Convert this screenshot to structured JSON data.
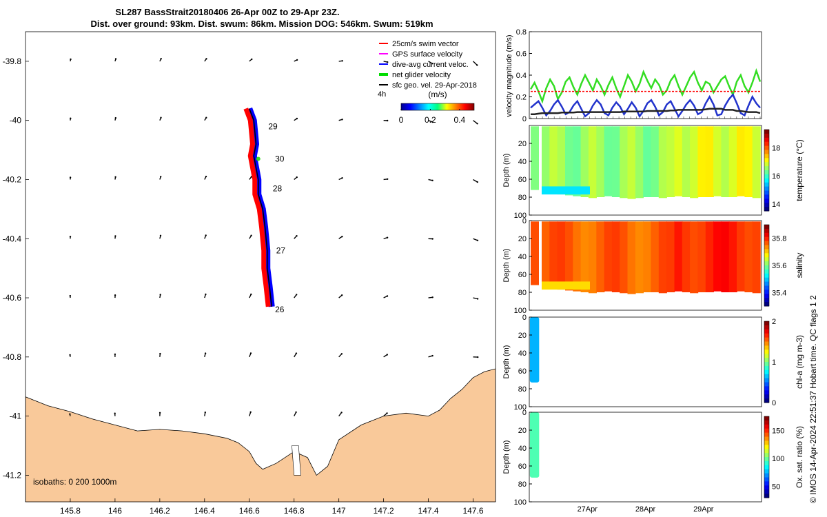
{
  "title_line1": "SL287 BassStrait20180406 26-Apr 00Z to 29-Apr 23Z.",
  "title_line2": "Dist. over ground: 93km. Dist. swum: 86km. Mission DOG: 546km. Swum: 519km",
  "map": {
    "x_ticks": [
      "145.8",
      "146",
      "146.2",
      "146.4",
      "146.6",
      "146.8",
      "147",
      "147.2",
      "147.4",
      "147.6"
    ],
    "y_ticks": [
      "-39.8",
      "-40",
      "-40.2",
      "-40.4",
      "-40.6",
      "-40.8",
      "-41",
      "-41.2"
    ],
    "x_range": [
      145.6,
      147.7
    ],
    "y_range": [
      -41.29,
      -39.7
    ],
    "legend": [
      {
        "label": "25cm/s swim vector",
        "color": "#ff0000"
      },
      {
        "label": "GPS surface velocity",
        "color": "#ff00ff"
      },
      {
        "label": "dive-avg current veloc.",
        "color": "#0000ff"
      },
      {
        "label": "net glider velocity",
        "color": "#00dd00"
      },
      {
        "label": "sfc geo. vel. 29-Apr-2018",
        "color": "#000000"
      }
    ],
    "colorbar_unit": "(m/s)",
    "colorbar_ticks": [
      "0",
      "0.2",
      "0.4"
    ],
    "colorbar_range": [
      0,
      0.5
    ],
    "time_label": "4h",
    "day_labels": [
      {
        "text": "29",
        "lon": 146.685,
        "lat": -40.02
      },
      {
        "text": "30",
        "lon": 146.715,
        "lat": -40.13
      },
      {
        "text": "28",
        "lon": 146.705,
        "lat": -40.23
      },
      {
        "text": "27",
        "lon": 146.72,
        "lat": -40.44
      },
      {
        "text": "26",
        "lon": 146.715,
        "lat": -40.64
      }
    ],
    "isobaths_label": "isobaths: 0   200  1000m",
    "land_color": "#f9c99a"
  },
  "chart_data": [
    {
      "type": "line",
      "name": "velocity",
      "ylabel": "velocity magnitude (m/s)",
      "ylim": [
        0,
        0.8
      ],
      "y_ticks": [
        "0",
        "0.2",
        "0.4",
        "0.6",
        "0.8"
      ],
      "x_range_days": [
        0,
        4
      ],
      "series": [
        {
          "color": "#33dd22",
          "values": [
            0.27,
            0.33,
            0.25,
            0.16,
            0.28,
            0.36,
            0.3,
            0.18,
            0.24,
            0.34,
            0.38,
            0.29,
            0.22,
            0.32,
            0.4,
            0.33,
            0.26,
            0.36,
            0.3,
            0.22,
            0.31,
            0.38,
            0.28,
            0.2,
            0.3,
            0.4,
            0.34,
            0.25,
            0.32,
            0.43,
            0.35,
            0.28,
            0.36,
            0.31,
            0.22,
            0.26,
            0.35,
            0.4,
            0.3,
            0.22,
            0.3,
            0.38,
            0.43,
            0.33,
            0.26,
            0.34,
            0.32,
            0.24,
            0.3,
            0.36,
            0.39,
            0.3,
            0.22,
            0.34,
            0.4,
            0.3,
            0.24,
            0.33,
            0.44,
            0.34
          ]
        },
        {
          "color": "#2233cc",
          "values": [
            0.1,
            0.13,
            0.16,
            0.1,
            0.03,
            0.07,
            0.13,
            0.17,
            0.11,
            0.04,
            0.06,
            0.12,
            0.16,
            0.09,
            0.02,
            0.05,
            0.12,
            0.17,
            0.13,
            0.05,
            0.03,
            0.1,
            0.15,
            0.11,
            0.04,
            0.09,
            0.15,
            0.1,
            0.02,
            0.07,
            0.14,
            0.17,
            0.11,
            0.03,
            0.06,
            0.13,
            0.16,
            0.09,
            0.02,
            0.07,
            0.13,
            0.17,
            0.12,
            0.04,
            0.06,
            0.14,
            0.2,
            0.13,
            0.03,
            0.04,
            0.12,
            0.18,
            0.22,
            0.14,
            0.05,
            0.03,
            0.12,
            0.2,
            0.14,
            0.1
          ]
        },
        {
          "color": "#222222",
          "values": [
            0.04,
            0.04,
            0.045,
            0.05,
            0.05,
            0.05,
            0.05,
            0.05,
            0.055,
            0.055,
            0.055,
            0.055,
            0.06,
            0.06,
            0.06,
            0.06,
            0.06,
            0.06,
            0.06,
            0.06,
            0.06,
            0.06,
            0.06,
            0.06,
            0.065,
            0.065,
            0.065,
            0.065,
            0.065,
            0.065,
            0.07,
            0.07,
            0.07,
            0.07,
            0.07,
            0.07,
            0.075,
            0.075,
            0.08,
            0.08,
            0.08,
            0.08,
            0.08,
            0.08,
            0.08,
            0.085,
            0.09,
            0.09,
            0.09,
            0.09,
            0.08,
            0.08,
            0.08,
            0.07,
            0.07,
            0.065,
            0.06,
            0.06,
            0.06,
            0.05
          ]
        },
        {
          "color": "#ff0000",
          "dashed": true,
          "values": [
            0.25,
            0.25
          ]
        }
      ]
    },
    {
      "type": "heatmap",
      "name": "temperature",
      "ylabel": "Depth (m)",
      "clabel": "temperature (°C)",
      "crange": [
        13.5,
        19.3
      ],
      "c_ticks": [
        "14",
        "16",
        "18"
      ],
      "y_ticks": [
        "20",
        "40",
        "60",
        "80",
        "100"
      ],
      "bottom_depth": [
        75,
        76,
        77,
        78,
        79,
        80,
        81,
        80,
        79,
        80,
        81,
        82,
        81,
        80,
        80,
        81,
        80,
        79,
        80,
        81,
        80,
        80,
        79,
        80,
        80,
        79,
        80,
        81
      ]
    },
    {
      "type": "heatmap",
      "name": "salinity",
      "ylabel": "Depth (m)",
      "clabel": "salinity",
      "crange": [
        35.3,
        35.9
      ],
      "c_ticks": [
        "35.4",
        "35.6",
        "35.8"
      ],
      "y_ticks": [
        "0",
        "20",
        "40",
        "60",
        "80",
        "100"
      ],
      "bottom_depth": [
        75,
        76,
        77,
        78,
        79,
        80,
        81,
        80,
        79,
        80,
        81,
        82,
        81,
        80,
        80,
        81,
        80,
        79,
        80,
        81,
        80,
        80,
        79,
        80,
        80,
        79,
        80,
        81
      ]
    },
    {
      "type": "heatmap",
      "name": "chlorophyll",
      "ylabel": "Depth (m)",
      "clabel": "chl-a (mg m-3)",
      "crange": [
        0,
        2
      ],
      "c_ticks": [
        "0",
        "1",
        "2"
      ],
      "y_ticks": [
        "0",
        "20",
        "40",
        "60",
        "80",
        "100"
      ],
      "data_days": [
        0.01,
        0.17
      ],
      "bottom_depth_m": 73
    },
    {
      "type": "heatmap",
      "name": "oxygen",
      "ylabel": "Depth (m)",
      "clabel": "Ox. sat. ratio (%)",
      "crange": [
        30,
        175
      ],
      "c_ticks": [
        "50",
        "100",
        "150"
      ],
      "y_ticks": [
        "0",
        "20",
        "40",
        "60",
        "80",
        "100"
      ],
      "data_days": [
        0.01,
        0.17
      ],
      "bottom_depth_m": 73
    }
  ],
  "time_axis_labels": [
    {
      "text": "27Apr",
      "day": 1
    },
    {
      "text": "28Apr",
      "day": 2
    },
    {
      "text": "29Apr",
      "day": 3
    }
  ],
  "side_text": "© IMOS 14-Apr-2024 22:51:37 Hobart time. QC flags 1  2"
}
